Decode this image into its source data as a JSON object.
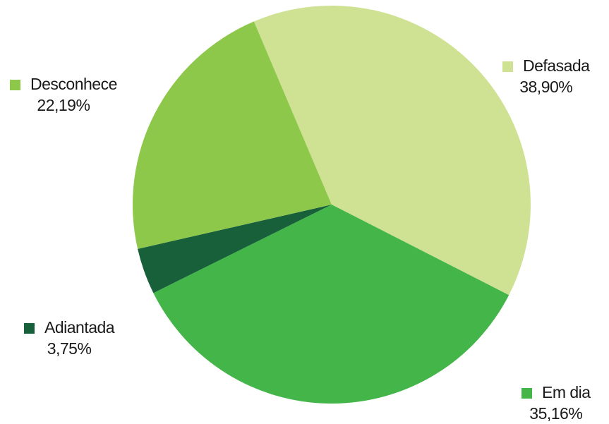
{
  "chart_data": {
    "type": "pie",
    "title": "",
    "slices": [
      {
        "name": "Defasada",
        "value": 38.9,
        "value_label": "38,90%",
        "color": "#cfe293"
      },
      {
        "name": "Em dia",
        "value": 35.16,
        "value_label": "35,16%",
        "color": "#43b549"
      },
      {
        "name": "Adiantada",
        "value": 3.75,
        "value_label": "3,75%",
        "color": "#17603a"
      },
      {
        "name": "Desconhece",
        "value": 22.19,
        "value_label": "22,19%",
        "color": "#8ec84b"
      }
    ],
    "start_angle_deg": -23,
    "direction": "clockwise",
    "legend": "inline-labels"
  }
}
